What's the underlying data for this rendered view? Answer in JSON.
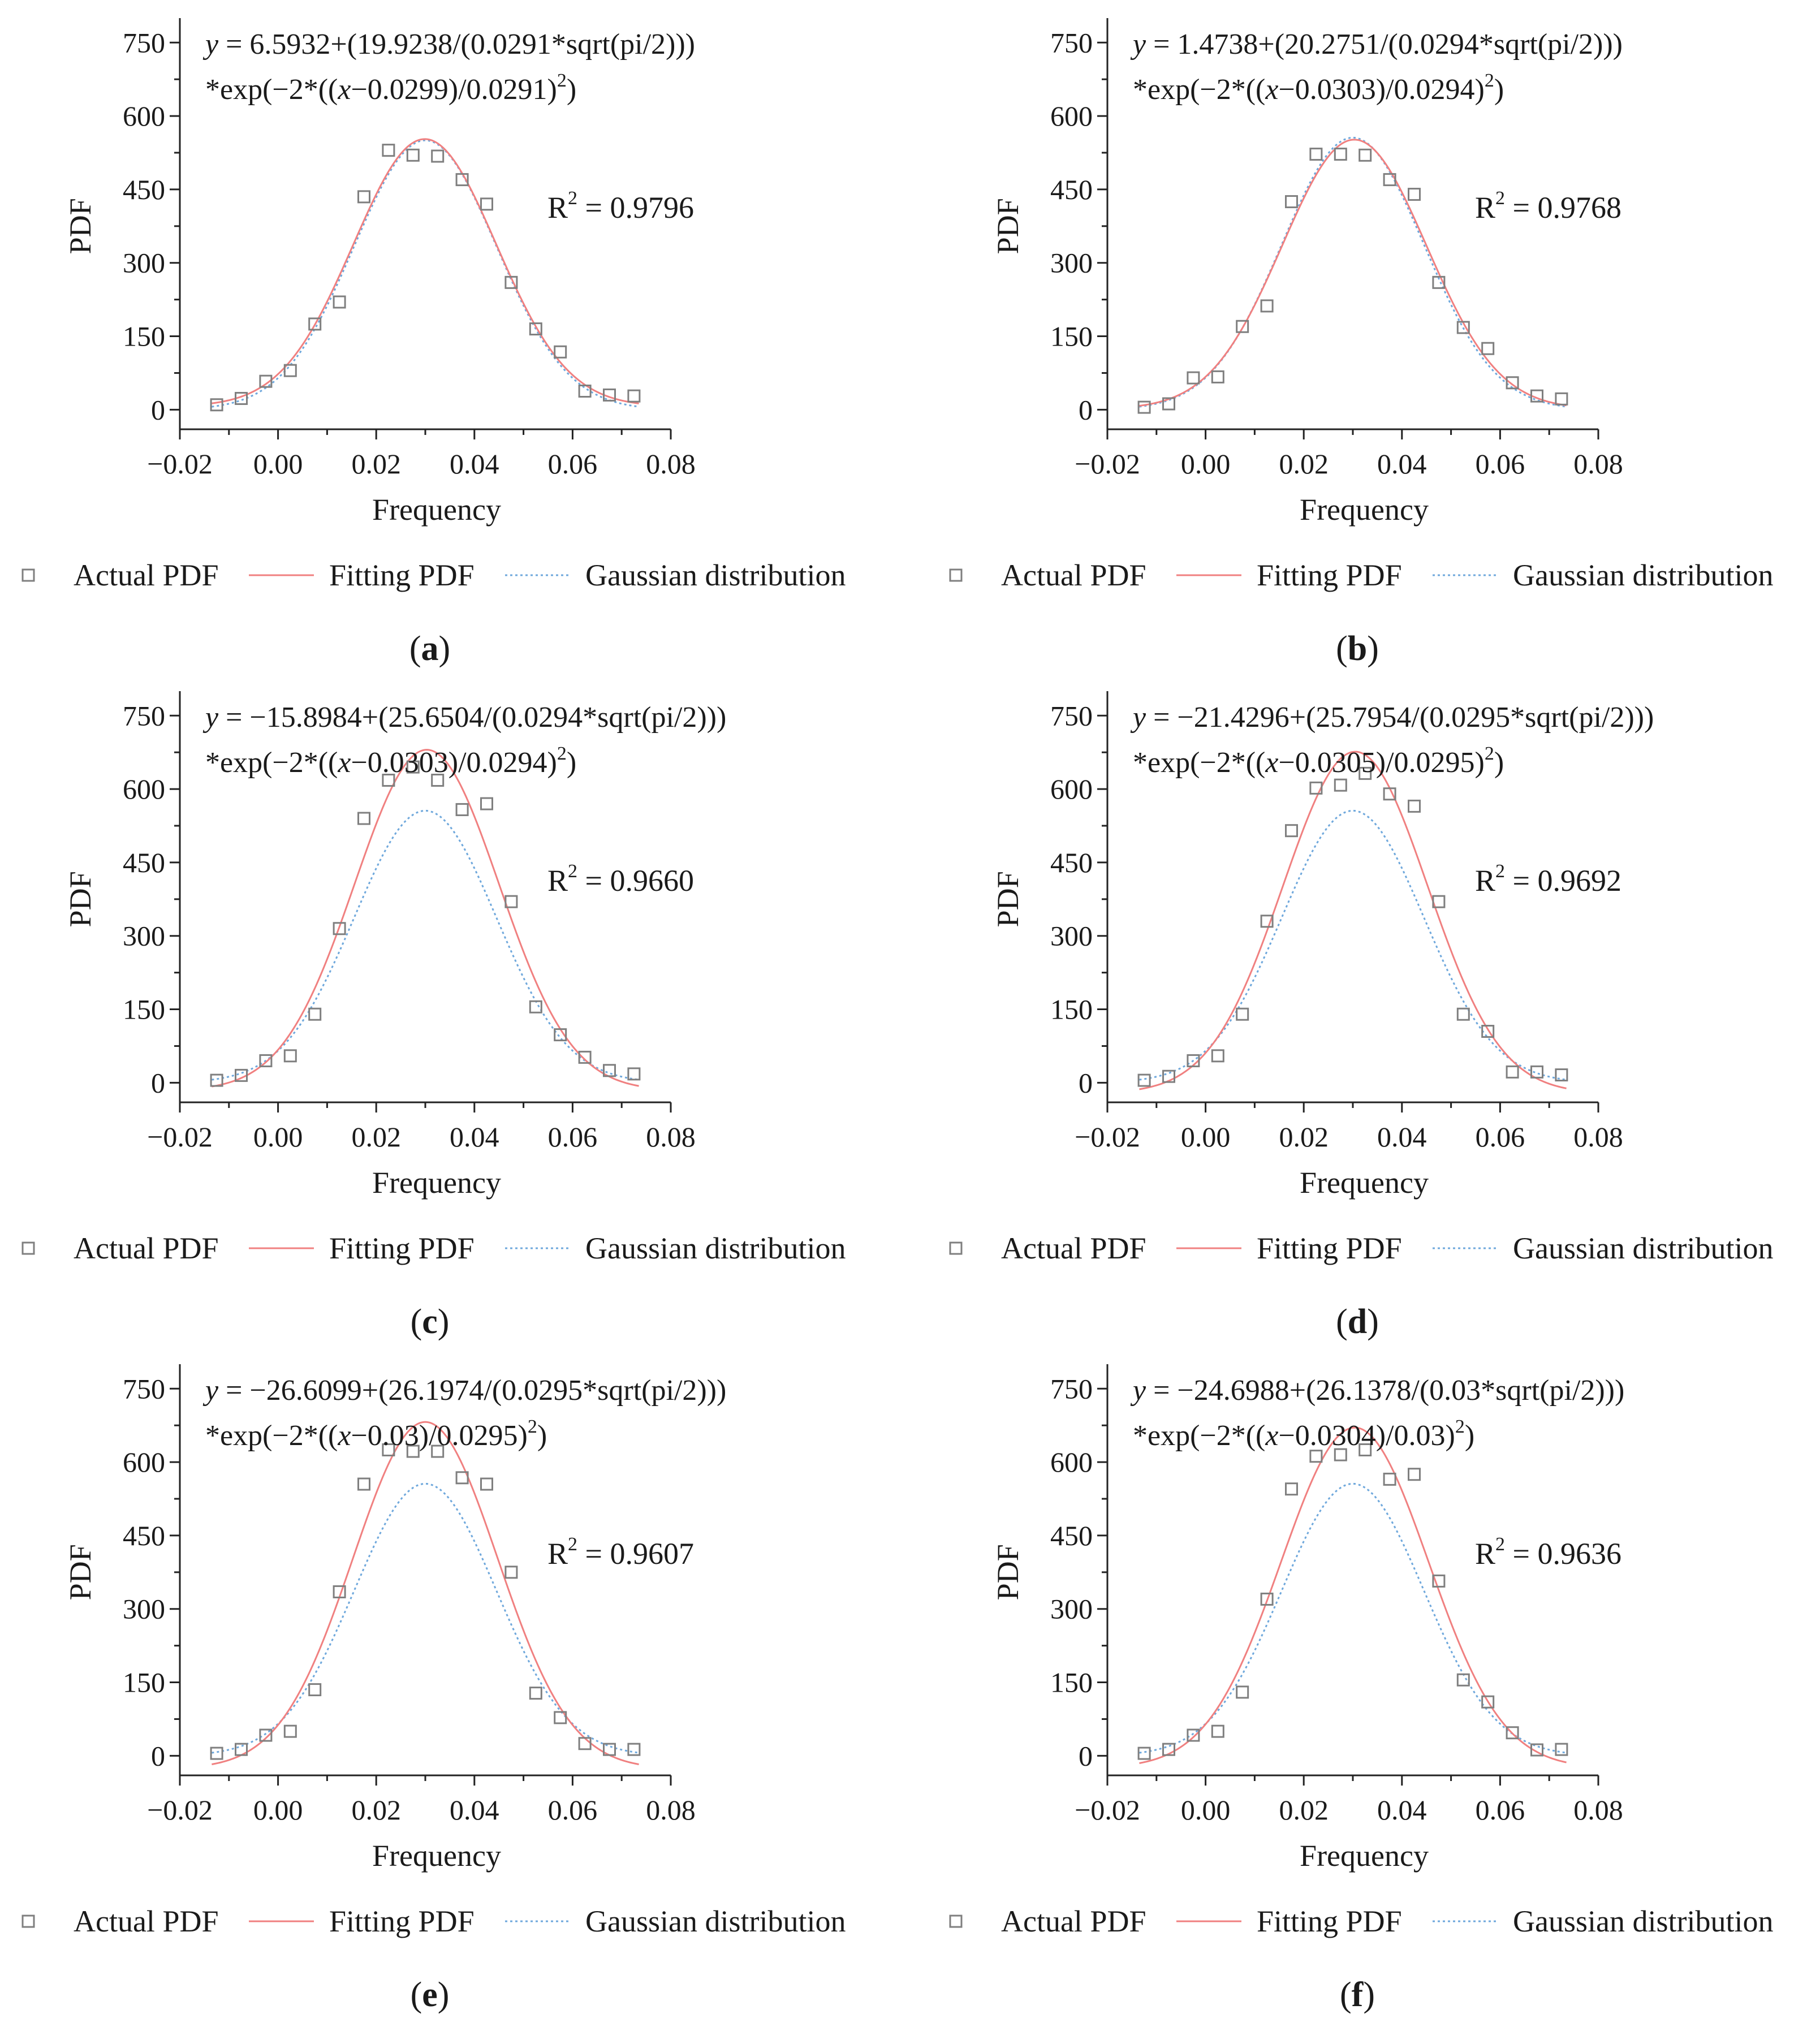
{
  "legend": {
    "actual": "Actual PDF",
    "fitting": "Fitting PDF",
    "gaussian": "Gaussian distribution"
  },
  "colors": {
    "axis": "#222222",
    "actual_marker": "#7f7f7f",
    "fitting_line": "#f08080",
    "gaussian_line": "#6fa8dc"
  },
  "chart_data": [
    {
      "type": "scatter",
      "panel_label": "a",
      "equation_line1_prefix": "y",
      "equation_line1_rest": " = 6.5932+(19.9238/(0.0291*sqrt(pi/2)))",
      "equation_line2_start": "*exp(−2*((",
      "equation_line2_var": "x",
      "equation_line2_mid": "−0.0299)/0.0291)",
      "equation_exp": "2",
      "equation_line2_end": ")",
      "r2_label": "R",
      "r2_exp": "2",
      "r2_value": " = 0.9796",
      "xlabel": "Frequency",
      "ylabel": "PDF",
      "xlim": [
        -0.02,
        0.08
      ],
      "ylim": [
        -40,
        800
      ],
      "xticks": [
        -0.02,
        0.0,
        0.02,
        0.04,
        0.06,
        0.08
      ],
      "xtick_labels": [
        "−0.02",
        "0.00",
        "0.02",
        "0.04",
        "0.06",
        "0.08"
      ],
      "yticks": [
        0,
        150,
        300,
        450,
        600,
        750
      ],
      "ytick_labels": [
        "0",
        "150",
        "300",
        "450",
        "600",
        "750"
      ],
      "x": [
        -0.0125,
        -0.0075,
        -0.0025,
        0.0025,
        0.0075,
        0.0125,
        0.0175,
        0.0225,
        0.0275,
        0.0325,
        0.0375,
        0.0425,
        0.0475,
        0.0525,
        0.0575,
        0.0625,
        0.0675,
        0.0725
      ],
      "actual": [
        10,
        23,
        58,
        80,
        175,
        220,
        435,
        530,
        520,
        518,
        470,
        420,
        260,
        165,
        118,
        38,
        30,
        28
      ],
      "fit": {
        "y0": 6.5932,
        "A": 19.9238,
        "w": 0.0291,
        "xc": 0.0299
      },
      "gauss": {
        "y0": 0,
        "A": 20.0,
        "w": 0.029,
        "xc": 0.03
      }
    },
    {
      "type": "scatter",
      "panel_label": "b",
      "equation_line1_prefix": "y",
      "equation_line1_rest": " = 1.4738+(20.2751/(0.0294*sqrt(pi/2)))",
      "equation_line2_start": "*exp(−2*((",
      "equation_line2_var": "x",
      "equation_line2_mid": "−0.0303)/0.0294)",
      "equation_exp": "2",
      "equation_line2_end": ")",
      "r2_label": "R",
      "r2_exp": "2",
      "r2_value": " = 0.9768",
      "xlabel": "Frequency",
      "ylabel": "PDF",
      "xlim": [
        -0.02,
        0.08
      ],
      "ylim": [
        -40,
        800
      ],
      "xticks": [
        -0.02,
        0.0,
        0.02,
        0.04,
        0.06,
        0.08
      ],
      "xtick_labels": [
        "−0.02",
        "0.00",
        "0.02",
        "0.04",
        "0.06",
        "0.08"
      ],
      "yticks": [
        0,
        150,
        300,
        450,
        600,
        750
      ],
      "ytick_labels": [
        "0",
        "150",
        "300",
        "450",
        "600",
        "750"
      ],
      "x": [
        -0.0125,
        -0.0075,
        -0.0025,
        0.0025,
        0.0075,
        0.0125,
        0.0175,
        0.0225,
        0.0275,
        0.0325,
        0.0375,
        0.0425,
        0.0475,
        0.0525,
        0.0575,
        0.0625,
        0.0675,
        0.0725
      ],
      "actual": [
        5,
        12,
        65,
        67,
        170,
        212,
        425,
        522,
        522,
        520,
        470,
        440,
        260,
        168,
        125,
        55,
        28,
        22
      ],
      "fit": {
        "y0": 1.4738,
        "A": 20.2751,
        "w": 0.0294,
        "xc": 0.0303
      },
      "gauss": {
        "y0": 0,
        "A": 20.2,
        "w": 0.029,
        "xc": 0.03
      }
    },
    {
      "type": "scatter",
      "panel_label": "c",
      "equation_line1_prefix": "y",
      "equation_line1_rest": " = −15.8984+(25.6504/(0.0294*sqrt(pi/2)))",
      "equation_line2_start": "*exp(−2*((",
      "equation_line2_var": "x",
      "equation_line2_mid": "−0.0303)/0.0294)",
      "equation_exp": "2",
      "equation_line2_end": ")",
      "r2_label": "R",
      "r2_exp": "2",
      "r2_value": " = 0.9660",
      "xlabel": "Frequency",
      "ylabel": "PDF",
      "xlim": [
        -0.02,
        0.08
      ],
      "ylim": [
        -40,
        800
      ],
      "xticks": [
        -0.02,
        0.0,
        0.02,
        0.04,
        0.06,
        0.08
      ],
      "xtick_labels": [
        "−0.02",
        "0.00",
        "0.02",
        "0.04",
        "0.06",
        "0.08"
      ],
      "yticks": [
        0,
        150,
        300,
        450,
        600,
        750
      ],
      "ytick_labels": [
        "0",
        "150",
        "300",
        "450",
        "600",
        "750"
      ],
      "x": [
        -0.0125,
        -0.0075,
        -0.0025,
        0.0025,
        0.0075,
        0.0125,
        0.0175,
        0.0225,
        0.0275,
        0.0325,
        0.0375,
        0.0425,
        0.0475,
        0.0525,
        0.0575,
        0.0625,
        0.0675,
        0.0725
      ],
      "actual": [
        5,
        15,
        45,
        55,
        140,
        315,
        540,
        618,
        645,
        618,
        558,
        570,
        370,
        155,
        98,
        52,
        25,
        18
      ],
      "fit": {
        "y0": -15.8984,
        "A": 25.6504,
        "w": 0.0294,
        "xc": 0.0303
      },
      "gauss": {
        "y0": 0,
        "A": 20.2,
        "w": 0.029,
        "xc": 0.03
      }
    },
    {
      "type": "scatter",
      "panel_label": "d",
      "equation_line1_prefix": "y",
      "equation_line1_rest": " = −21.4296+(25.7954/(0.0295*sqrt(pi/2)))",
      "equation_line2_start": "*exp(−2*((",
      "equation_line2_var": "x",
      "equation_line2_mid": "−0.0305)/0.0295)",
      "equation_exp": "2",
      "equation_line2_end": ")",
      "r2_label": "R",
      "r2_exp": "2",
      "r2_value": " = 0.9692",
      "xlabel": "Frequency",
      "ylabel": "PDF",
      "xlim": [
        -0.02,
        0.08
      ],
      "ylim": [
        -40,
        800
      ],
      "xticks": [
        -0.02,
        0.0,
        0.02,
        0.04,
        0.06,
        0.08
      ],
      "xtick_labels": [
        "−0.02",
        "0.00",
        "0.02",
        "0.04",
        "0.06",
        "0.08"
      ],
      "yticks": [
        0,
        150,
        300,
        450,
        600,
        750
      ],
      "ytick_labels": [
        "0",
        "150",
        "300",
        "450",
        "600",
        "750"
      ],
      "x": [
        -0.0125,
        -0.0075,
        -0.0025,
        0.0025,
        0.0075,
        0.0125,
        0.0175,
        0.0225,
        0.0275,
        0.0325,
        0.0375,
        0.0425,
        0.0475,
        0.0525,
        0.0575,
        0.0625,
        0.0675,
        0.0725
      ],
      "actual": [
        5,
        13,
        45,
        55,
        140,
        330,
        515,
        602,
        608,
        632,
        590,
        565,
        370,
        140,
        105,
        22,
        22,
        16
      ],
      "fit": {
        "y0": -21.4296,
        "A": 25.7954,
        "w": 0.0295,
        "xc": 0.0305
      },
      "gauss": {
        "y0": 0,
        "A": 20.2,
        "w": 0.029,
        "xc": 0.03
      }
    },
    {
      "type": "scatter",
      "panel_label": "e",
      "equation_line1_prefix": "y",
      "equation_line1_rest": " = −26.6099+(26.1974/(0.0295*sqrt(pi/2)))",
      "equation_line2_start": "*exp(−2*((",
      "equation_line2_var": "x",
      "equation_line2_mid": "−0.03)/0.0295)",
      "equation_exp": "2",
      "equation_line2_end": ")",
      "r2_label": "R",
      "r2_exp": "2",
      "r2_value": " = 0.9607",
      "xlabel": "Frequency",
      "ylabel": "PDF",
      "xlim": [
        -0.02,
        0.08
      ],
      "ylim": [
        -40,
        800
      ],
      "xticks": [
        -0.02,
        0.0,
        0.02,
        0.04,
        0.06,
        0.08
      ],
      "xtick_labels": [
        "−0.02",
        "0.00",
        "0.02",
        "0.04",
        "0.06",
        "0.08"
      ],
      "yticks": [
        0,
        150,
        300,
        450,
        600,
        750
      ],
      "ytick_labels": [
        "0",
        "150",
        "300",
        "450",
        "600",
        "750"
      ],
      "x": [
        -0.0125,
        -0.0075,
        -0.0025,
        0.0025,
        0.0075,
        0.0125,
        0.0175,
        0.0225,
        0.0275,
        0.0325,
        0.0375,
        0.0425,
        0.0475,
        0.0525,
        0.0575,
        0.0625,
        0.0675,
        0.0725
      ],
      "actual": [
        5,
        13,
        42,
        50,
        135,
        335,
        555,
        625,
        622,
        622,
        568,
        555,
        375,
        128,
        78,
        25,
        13,
        13
      ],
      "fit": {
        "y0": -26.6099,
        "A": 26.1974,
        "w": 0.0295,
        "xc": 0.03
      },
      "gauss": {
        "y0": 0,
        "A": 20.2,
        "w": 0.029,
        "xc": 0.03
      }
    },
    {
      "type": "scatter",
      "panel_label": "f",
      "equation_line1_prefix": "y",
      "equation_line1_rest": " = −24.6988+(26.1378/(0.03*sqrt(pi/2)))",
      "equation_line2_start": "*exp(−2*((",
      "equation_line2_var": "x",
      "equation_line2_mid": "−0.0304)/0.03)",
      "equation_exp": "2",
      "equation_line2_end": ")",
      "r2_label": "R",
      "r2_exp": "2",
      "r2_value": " = 0.9636",
      "xlabel": "Frequency",
      "ylabel": "PDF",
      "xlim": [
        -0.02,
        0.08
      ],
      "ylim": [
        -40,
        800
      ],
      "xticks": [
        -0.02,
        0.0,
        0.02,
        0.04,
        0.06,
        0.08
      ],
      "xtick_labels": [
        "−0.02",
        "0.00",
        "0.02",
        "0.04",
        "0.06",
        "0.08"
      ],
      "yticks": [
        0,
        150,
        300,
        450,
        600,
        750
      ],
      "ytick_labels": [
        "0",
        "150",
        "300",
        "450",
        "600",
        "750"
      ],
      "x": [
        -0.0125,
        -0.0075,
        -0.0025,
        0.0025,
        0.0075,
        0.0125,
        0.0175,
        0.0225,
        0.0275,
        0.0325,
        0.0375,
        0.0425,
        0.0475,
        0.0525,
        0.0575,
        0.0625,
        0.0675,
        0.0725
      ],
      "actual": [
        5,
        13,
        42,
        50,
        130,
        320,
        545,
        612,
        615,
        625,
        565,
        575,
        357,
        155,
        110,
        47,
        12,
        13
      ],
      "fit": {
        "y0": -24.6988,
        "A": 26.1378,
        "w": 0.03,
        "xc": 0.0304
      },
      "gauss": {
        "y0": 0,
        "A": 20.2,
        "w": 0.029,
        "xc": 0.03
      }
    }
  ]
}
